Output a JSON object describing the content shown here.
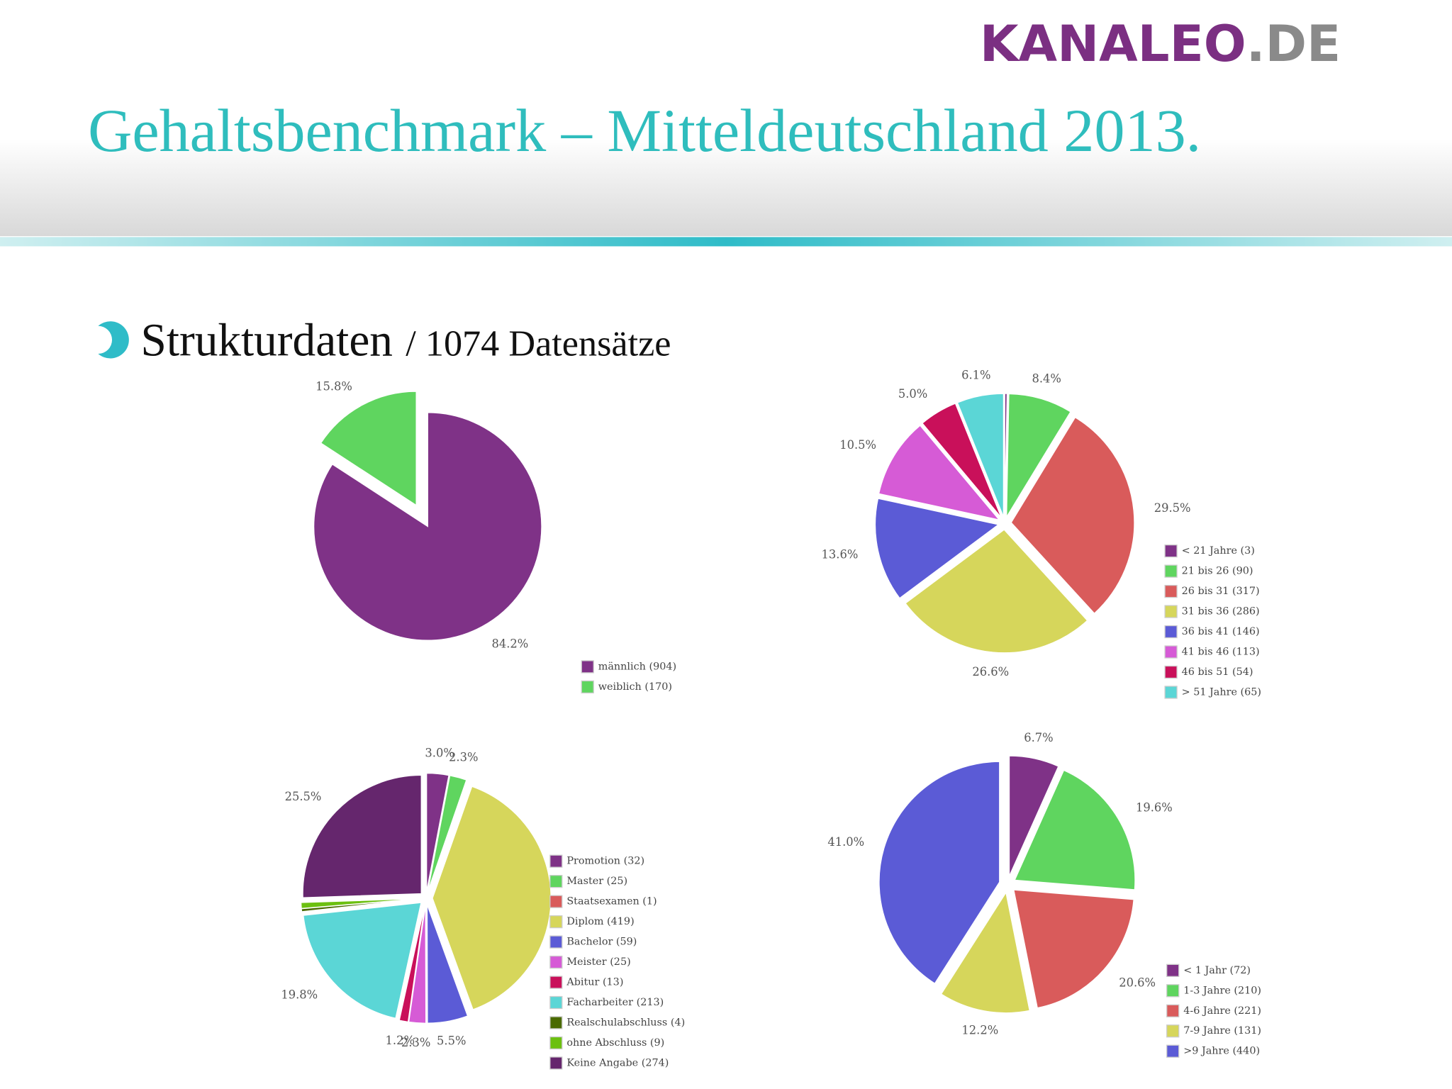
{
  "slide": {
    "logo": "KANALEO",
    "logo_suffix": ".DE",
    "title": "Gehaltsbenchmark – Mitteldeutschland 2013.",
    "bullet_main": "Strukturdaten",
    "bullet_sub": "/ 1074 Datensätze"
  },
  "chart_data": [
    {
      "type": "pie",
      "categories": [
        "männlich (904)",
        "weiblich (170)"
      ],
      "values": [
        84.2,
        15.8
      ],
      "value_labels": [
        "84.2%",
        "15.8%"
      ],
      "colors": [
        "#7f3287",
        "#5fd55f"
      ]
    },
    {
      "type": "pie",
      "categories": [
        "< 21 Jahre (3)",
        "21 bis 26 (90)",
        "26 bis 31 (317)",
        "31 bis 36 (286)",
        "36 bis 41 (146)",
        "41 bis 46 (113)",
        "46 bis 51 (54)",
        "> 51 Jahre (65)"
      ],
      "values": [
        0.3,
        8.4,
        29.5,
        26.6,
        13.6,
        10.5,
        5.0,
        6.1
      ],
      "value_labels": [
        null,
        "8.4%",
        "29.5%",
        "26.6%",
        "13.6%",
        "10.5%",
        "5.0%",
        "6.1%"
      ],
      "colors": [
        "#7f3287",
        "#5fd55f",
        "#d95b5b",
        "#d6d65b",
        "#5b5bd6",
        "#d65bd6",
        "#c9105a",
        "#5bd6d6"
      ]
    },
    {
      "type": "pie",
      "categories": [
        "Promotion (32)",
        "Master (25)",
        "Staatsexamen (1)",
        "Diplom (419)",
        "Bachelor (59)",
        "Meister (25)",
        "Abitur (13)",
        "Facharbeiter (213)",
        "Realschulabschluss (4)",
        "ohne Abschluss (9)",
        "Keine Angabe (274)"
      ],
      "values": [
        3.0,
        2.3,
        0.1,
        39.0,
        5.5,
        2.3,
        1.2,
        19.8,
        0.4,
        0.8,
        25.5
      ],
      "value_labels": [
        "3.0%",
        "2.3%",
        null,
        null,
        "5.5%",
        "2.3%",
        "1.2%",
        "19.8%",
        null,
        null,
        "25.5%"
      ],
      "colors": [
        "#7f3287",
        "#5fd55f",
        "#d95b5b",
        "#d6d65b",
        "#5b5bd6",
        "#d65bd6",
        "#c9105a",
        "#5bd6d6",
        "#4a6a00",
        "#6cc010",
        "#65266d"
      ]
    },
    {
      "type": "pie",
      "categories": [
        "< 1 Jahr (72)",
        "1-3 Jahre (210)",
        "4-6 Jahre (221)",
        "7-9 Jahre (131)",
        ">9 Jahre (440)"
      ],
      "values": [
        6.7,
        19.6,
        20.6,
        12.2,
        41.0
      ],
      "value_labels": [
        "6.7%",
        "19.6%",
        "20.6%",
        "12.2%",
        "41.0%"
      ],
      "colors": [
        "#7f3287",
        "#5fd55f",
        "#d95b5b",
        "#d6d65b",
        "#5b5bd6"
      ]
    }
  ]
}
